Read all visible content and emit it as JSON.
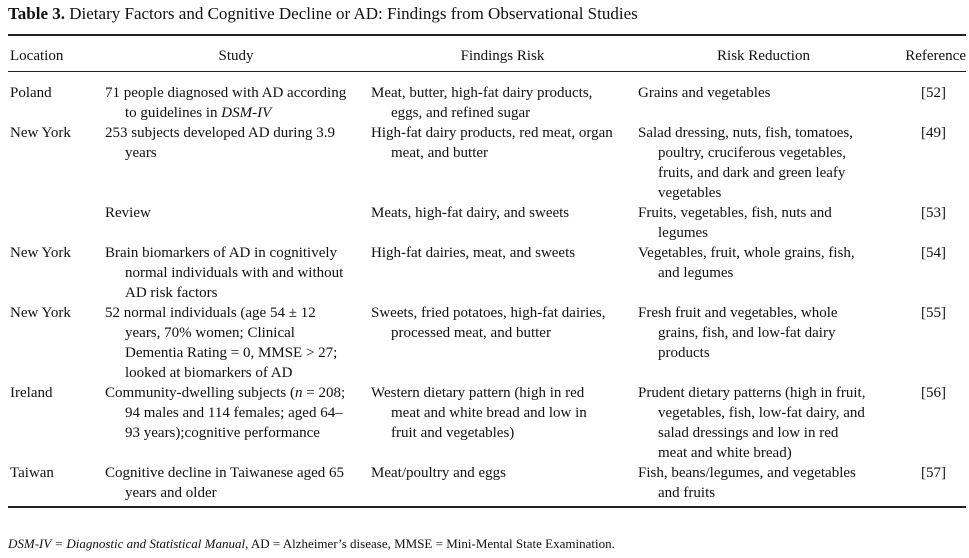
{
  "title": {
    "label": "Table 3.",
    "text": "Dietary Factors and Cognitive Decline or AD: Findings from Observational Studies"
  },
  "table": {
    "columns": [
      "Location",
      "Study",
      "Findings Risk",
      "Risk Reduction",
      "Reference"
    ],
    "rows": [
      [
        "Poland",
        [
          {
            "text": "71 people diagnosed with AD according to guidelines in ",
            "italic": false
          },
          {
            "text": "DSM-IV",
            "italic": true
          }
        ],
        "Meat, butter, high-fat dairy products, eggs, and refined sugar",
        "Grains and vegetables",
        "[52]"
      ],
      [
        "New York",
        "253 subjects developed AD during 3.9 years",
        "High-fat dairy products, red meat, organ meat, and butter",
        "Salad dressing, nuts, fish, tomatoes, poultry, cruciferous vegetables, fruits, and dark and green leafy vegetables",
        "[49]"
      ],
      [
        null,
        "Review",
        "Meats, high-fat dairy, and sweets",
        "Fruits, vegetables, fish, nuts and legumes",
        "[53]"
      ],
      [
        "New York",
        "Brain biomarkers of AD in cognitively normal individuals with and without AD risk factors",
        "High-fat dairies, meat, and sweets",
        "Vegetables, fruit, whole grains, fish, and legumes",
        "[54]"
      ],
      [
        "New York",
        "52 normal individuals (age 54 ± 12 years, 70% women; Clinical Dementia Rating = 0, MMSE > 27; looked at biomarkers of AD",
        "Sweets, fried potatoes, high-fat dairies, processed meat, and butter",
        "Fresh fruit and vegetables, whole grains, fish, and low-fat dairy products",
        "[55]"
      ],
      [
        "Ireland",
        [
          {
            "text": "Community-dwelling subjects (",
            "italic": false
          },
          {
            "text": "n",
            "italic": true
          },
          {
            "text": " = 208; 94 males and 114 females; aged 64–93 years);cognitive performance",
            "italic": false
          }
        ],
        "Western dietary pattern (high in red meat and white bread and low in fruit and vegetables)",
        "Prudent dietary patterns (high in fruit, vegetables, fish, low-fat dairy, and salad dressings and low in red meat and white bread)",
        "[56]"
      ],
      [
        "Taiwan",
        "Cognitive decline in Taiwanese aged 65 years and older",
        "Meat/poultry and eggs",
        "Fish, beans/legumes, and vegetables and fruits",
        "[57]"
      ]
    ]
  },
  "footnote": [
    {
      "text": "DSM-IV = Diagnostic and Statistical Manual",
      "italic": true
    },
    {
      "text": ", AD = Alzheimer’s disease, MMSE = Mini-Mental State Examination.",
      "italic": false
    }
  ]
}
